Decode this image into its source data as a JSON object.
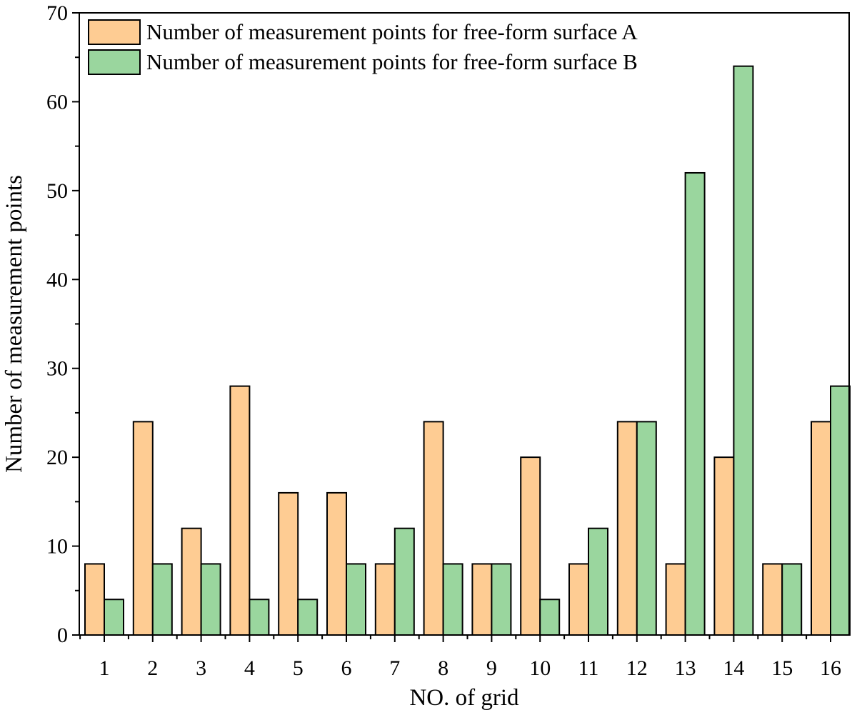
{
  "chart_data": {
    "type": "bar",
    "title": "",
    "xlabel": "NO. of grid",
    "ylabel": "Number of measurement points",
    "categories": [
      "1",
      "2",
      "3",
      "4",
      "5",
      "6",
      "7",
      "8",
      "9",
      "10",
      "11",
      "12",
      "13",
      "14",
      "15",
      "16"
    ],
    "series": [
      {
        "name": "Number of measurement points for free-form surface A",
        "color": "#FECC93",
        "values": [
          8,
          24,
          12,
          28,
          16,
          16,
          8,
          24,
          8,
          20,
          8,
          24,
          8,
          20,
          8,
          24
        ]
      },
      {
        "name": "Number of measurement points for free-form surface B",
        "color": "#9AD69E",
        "values": [
          4,
          8,
          8,
          4,
          4,
          8,
          12,
          8,
          8,
          4,
          12,
          24,
          52,
          64,
          8,
          28
        ]
      }
    ],
    "ylim": [
      0,
      70
    ],
    "yticks": [
      0,
      10,
      20,
      30,
      40,
      50,
      60,
      70
    ],
    "grid": false,
    "legend_position": "top-left"
  }
}
